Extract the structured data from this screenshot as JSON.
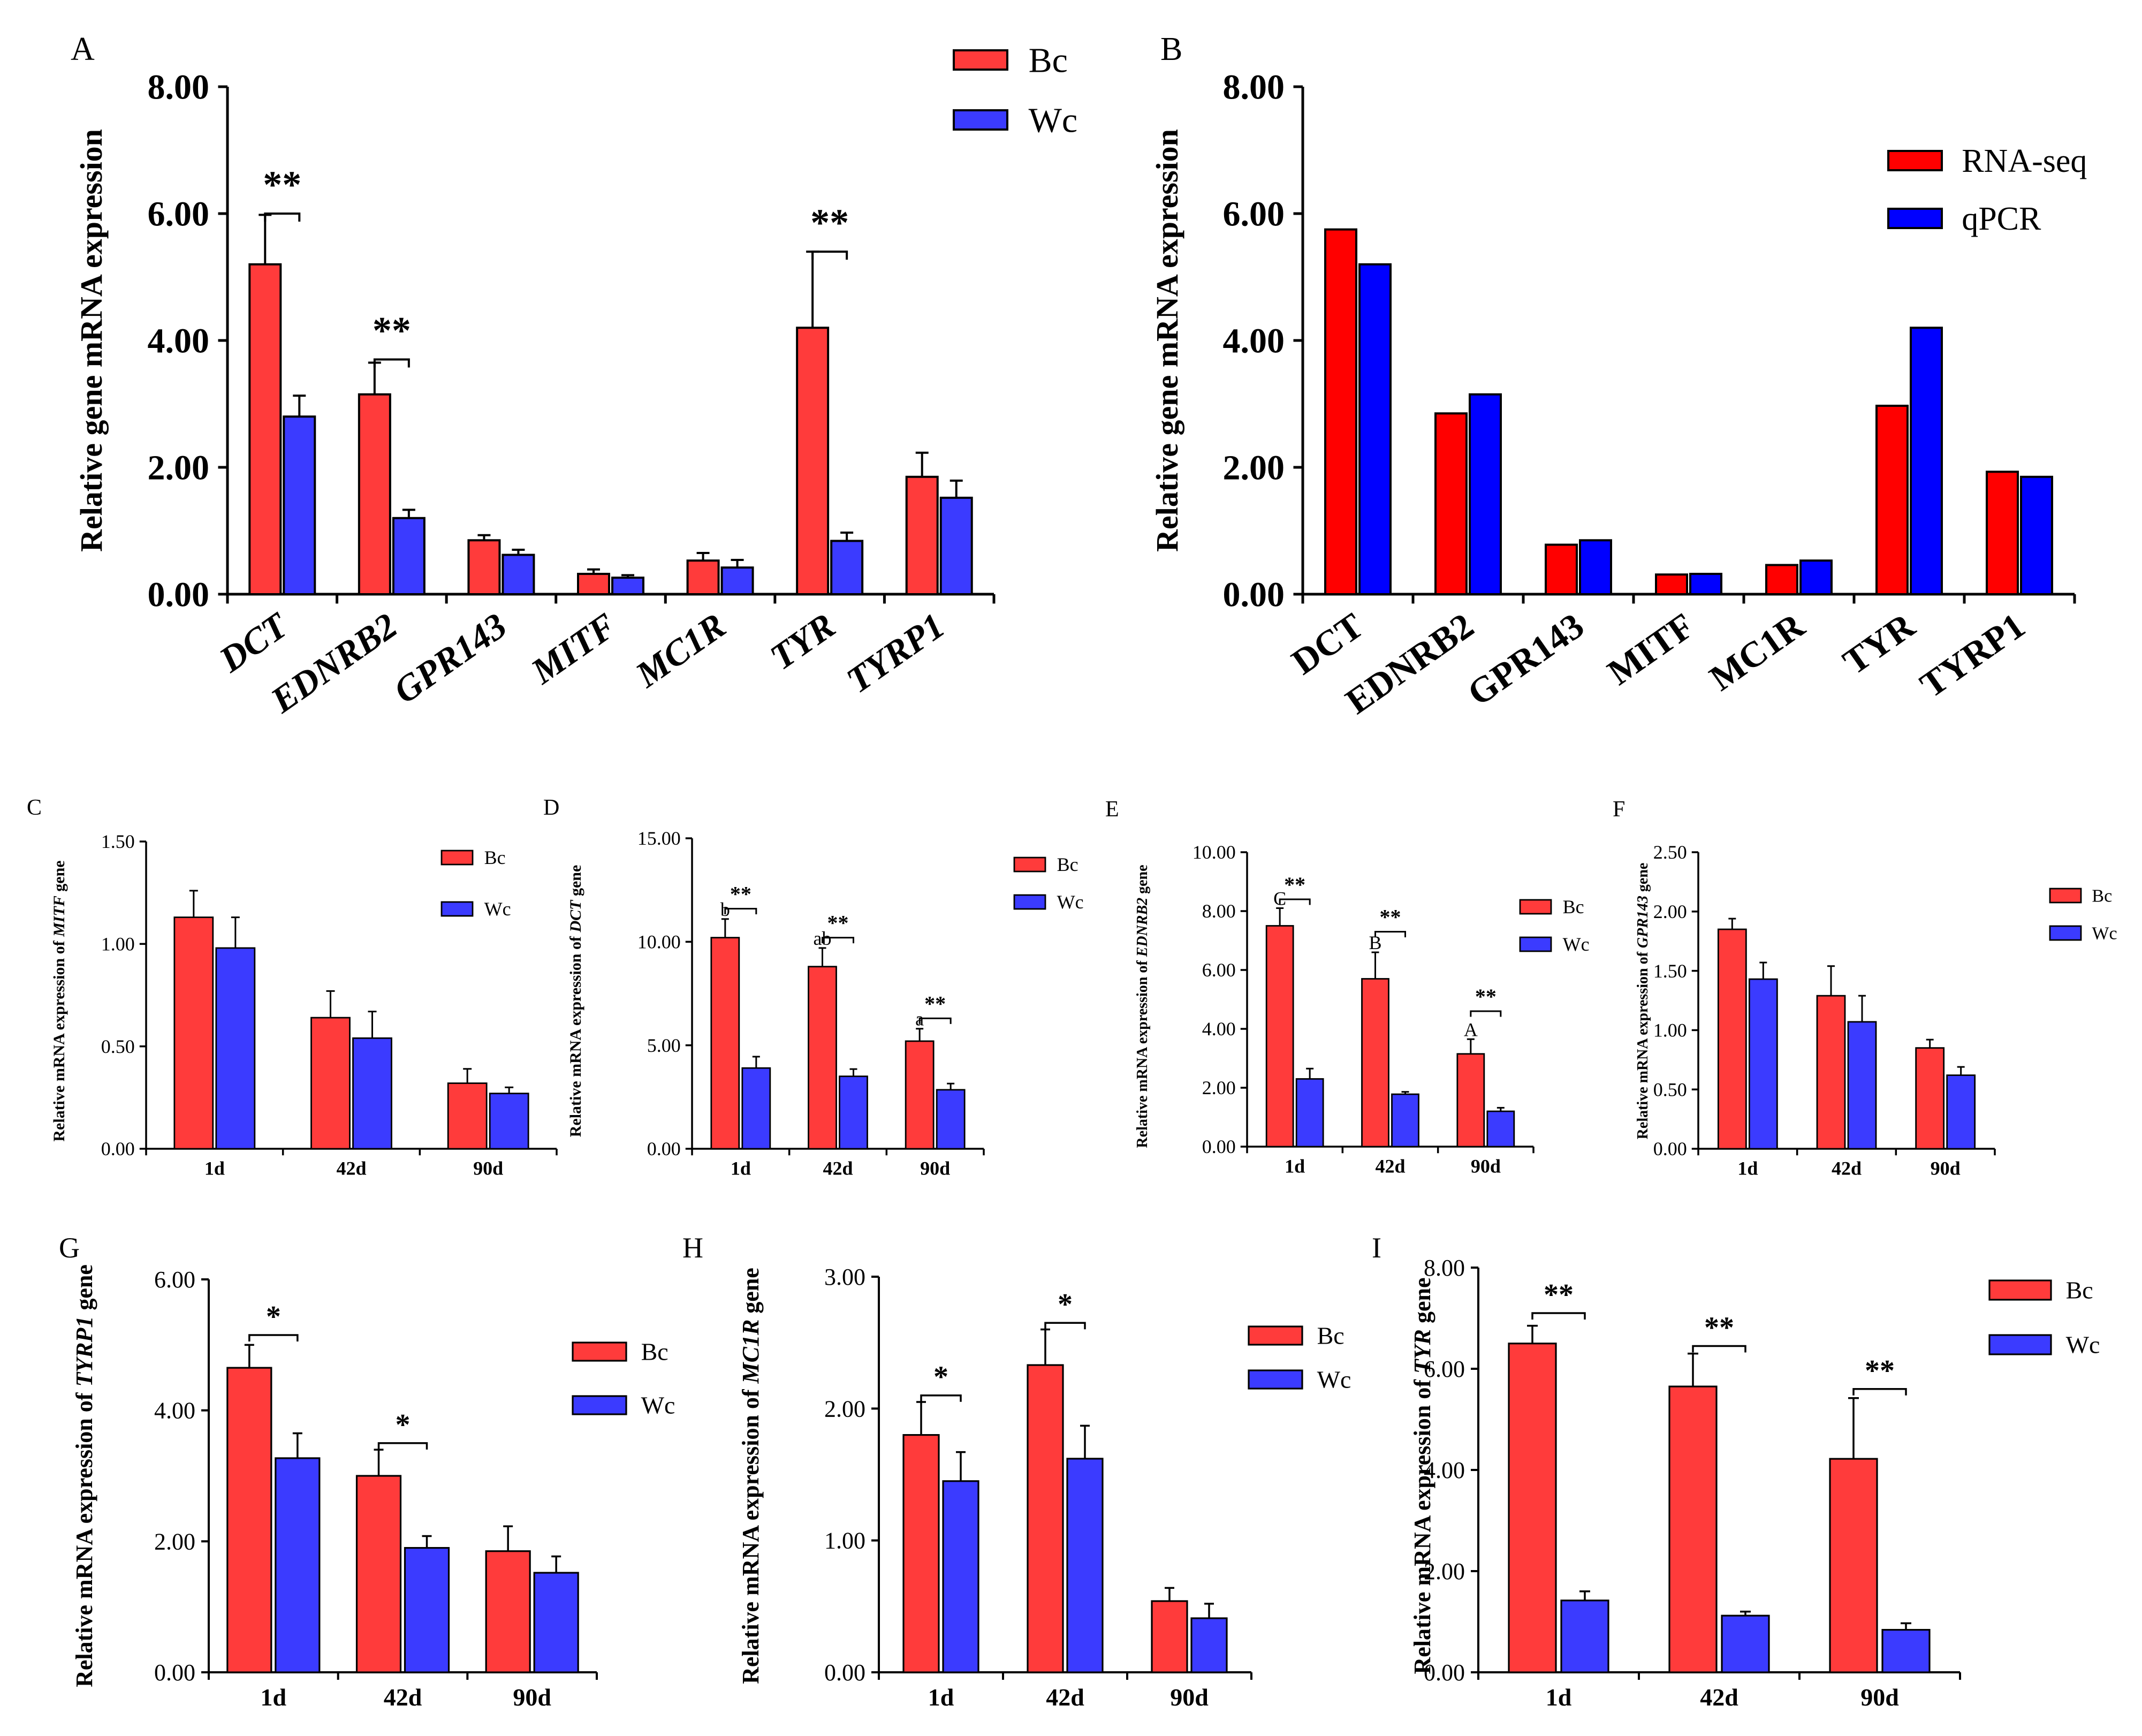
{
  "colors": {
    "bc": "#ff3b3b",
    "wc": "#3b3bff",
    "rnaseq": "#ff0000",
    "qpcr": "#0000ff"
  },
  "chart_data": [
    {
      "id": "A",
      "panel_label": "A",
      "type": "bar",
      "title": "",
      "ylabel": "Relative gene mRNA expression",
      "xlabel": "",
      "ylim": [
        0,
        8
      ],
      "yticks": [
        "0.00",
        "2.00",
        "4.00",
        "6.00",
        "8.00"
      ],
      "categories": [
        "DCT",
        "EDNRB2",
        "GPR143",
        "MITF",
        "MC1R",
        "TYR",
        "TYRP1"
      ],
      "series": [
        {
          "name": "Bc",
          "values": [
            5.2,
            3.15,
            0.85,
            0.32,
            0.53,
            4.2,
            1.85
          ],
          "errors": [
            0.78,
            0.5,
            0.08,
            0.07,
            0.12,
            1.2,
            0.38
          ]
        },
        {
          "name": "Wc",
          "values": [
            2.8,
            1.2,
            0.62,
            0.26,
            0.42,
            0.84,
            1.52
          ],
          "errors": [
            0.33,
            0.13,
            0.08,
            0.04,
            0.12,
            0.13,
            0.27
          ]
        }
      ],
      "annotations": [
        {
          "text": "**",
          "category": 0,
          "y": 6.0
        },
        {
          "text": "**",
          "category": 1,
          "y": 3.7
        },
        {
          "text": "**",
          "category": 5,
          "y": 5.4
        }
      ],
      "legend_location": "top-right"
    },
    {
      "id": "B",
      "panel_label": "B",
      "type": "bar",
      "title": "",
      "ylabel": "Relative gene mRNA expression",
      "xlabel": "",
      "ylim": [
        0,
        8
      ],
      "yticks": [
        "0.00",
        "2.00",
        "4.00",
        "6.00",
        "8.00"
      ],
      "categories": [
        "DCT",
        "EDNRB2",
        "GPR143",
        "MITF",
        "MC1R",
        "TYR",
        "TYRP1"
      ],
      "series": [
        {
          "name": "RNA-seq",
          "values": [
            5.75,
            2.85,
            0.78,
            0.31,
            0.46,
            2.97,
            1.93
          ]
        },
        {
          "name": "qPCR",
          "values": [
            5.2,
            3.15,
            0.85,
            0.32,
            0.53,
            4.2,
            1.85
          ]
        }
      ],
      "legend_location": "right"
    },
    {
      "id": "C",
      "panel_label": "C",
      "type": "bar",
      "ylabel_prefix": "Relative mRNA expression of ",
      "ylabel_gene": "MITF",
      "ylabel_suffix": " gene",
      "ylim": [
        0,
        1.5
      ],
      "yticks": [
        "0.00",
        "0.50",
        "1.00",
        "1.50"
      ],
      "categories": [
        "1d",
        "42d",
        "90d"
      ],
      "series": [
        {
          "name": "Bc",
          "values": [
            1.13,
            0.64,
            0.32
          ],
          "errors": [
            0.13,
            0.13,
            0.07
          ]
        },
        {
          "name": "Wc",
          "values": [
            0.98,
            0.54,
            0.27
          ],
          "errors": [
            0.15,
            0.13,
            0.03
          ]
        }
      ],
      "annotations": [],
      "legend_location": "top-right"
    },
    {
      "id": "D",
      "panel_label": "D",
      "type": "bar",
      "ylabel_prefix": "Relative mRNA expression of ",
      "ylabel_gene": "DCT",
      "ylabel_suffix": " gene",
      "ylim": [
        0,
        15
      ],
      "yticks": [
        "0.00",
        "5.00",
        "10.00",
        "15.00"
      ],
      "categories": [
        "1d",
        "42d",
        "90d"
      ],
      "series": [
        {
          "name": "Bc",
          "values": [
            10.2,
            8.8,
            5.2
          ],
          "errors": [
            0.9,
            0.9,
            0.6
          ]
        },
        {
          "name": "Wc",
          "values": [
            3.9,
            3.5,
            2.85
          ],
          "errors": [
            0.55,
            0.35,
            0.3
          ]
        }
      ],
      "annotations": [
        {
          "text": "**",
          "category": 0,
          "y": 11.6
        },
        {
          "text": "**",
          "category": 1,
          "y": 10.2
        },
        {
          "text": "**",
          "category": 2,
          "y": 6.3
        }
      ],
      "letters": [
        "b",
        "ab",
        "a"
      ],
      "legend_location": "top-right"
    },
    {
      "id": "E",
      "panel_label": "E",
      "type": "bar",
      "ylabel_prefix": "Relative mRNA expression of ",
      "ylabel_gene": "EDNRB2",
      "ylabel_suffix": " gene",
      "ylim": [
        0,
        10
      ],
      "yticks": [
        "0.00",
        "2.00",
        "4.00",
        "6.00",
        "8.00",
        "10.00"
      ],
      "categories": [
        "1d",
        "42d",
        "90d"
      ],
      "series": [
        {
          "name": "Bc",
          "values": [
            7.5,
            5.7,
            3.15
          ],
          "errors": [
            0.6,
            0.9,
            0.5
          ]
        },
        {
          "name": "Wc",
          "values": [
            2.3,
            1.78,
            1.2
          ],
          "errors": [
            0.35,
            0.08,
            0.12
          ]
        }
      ],
      "annotations": [
        {
          "text": "**",
          "category": 0,
          "y": 8.4
        },
        {
          "text": "**",
          "category": 1,
          "y": 7.3
        },
        {
          "text": "**",
          "category": 2,
          "y": 4.6
        }
      ],
      "letters": [
        "C",
        "B",
        "A"
      ],
      "legend_location": "top-right"
    },
    {
      "id": "F",
      "panel_label": "F",
      "type": "bar",
      "ylabel_prefix": "Relative mRNA expression of ",
      "ylabel_gene": "GPR143",
      "ylabel_suffix": " gene",
      "ylim": [
        0,
        2.5
      ],
      "yticks": [
        "0.00",
        "0.50",
        "1.00",
        "1.50",
        "2.00",
        "2.50"
      ],
      "categories": [
        "1d",
        "42d",
        "90d"
      ],
      "series": [
        {
          "name": "Bc",
          "values": [
            1.85,
            1.29,
            0.85
          ],
          "errors": [
            0.09,
            0.25,
            0.07
          ]
        },
        {
          "name": "Wc",
          "values": [
            1.43,
            1.07,
            0.62
          ],
          "errors": [
            0.14,
            0.22,
            0.07
          ]
        }
      ],
      "annotations": [],
      "legend_location": "top-right"
    },
    {
      "id": "G",
      "panel_label": "G",
      "type": "bar",
      "ylabel_prefix": "Relative mRNA expression of ",
      "ylabel_gene": "TYRP1",
      "ylabel_suffix": " gene",
      "ylim": [
        0,
        6
      ],
      "yticks": [
        "0.00",
        "2.00",
        "4.00",
        "6.00"
      ],
      "categories": [
        "1d",
        "42d",
        "90d"
      ],
      "series": [
        {
          "name": "Bc",
          "values": [
            4.65,
            3.0,
            1.85
          ],
          "errors": [
            0.35,
            0.4,
            0.38
          ]
        },
        {
          "name": "Wc",
          "values": [
            3.27,
            1.9,
            1.52
          ],
          "errors": [
            0.38,
            0.18,
            0.25
          ]
        }
      ],
      "annotations": [
        {
          "text": "*",
          "category": 0,
          "y": 5.15
        },
        {
          "text": "*",
          "category": 1,
          "y": 3.5
        }
      ],
      "legend_location": "right"
    },
    {
      "id": "H",
      "panel_label": "H",
      "type": "bar",
      "ylabel_prefix": "Relative mRNA expression of ",
      "ylabel_gene": "MC1R",
      "ylabel_suffix": " gene",
      "ylim": [
        0,
        3
      ],
      "yticks": [
        "0.00",
        "1.00",
        "2.00",
        "3.00"
      ],
      "categories": [
        "1d",
        "42d",
        "90d"
      ],
      "series": [
        {
          "name": "Bc",
          "values": [
            1.8,
            2.33,
            0.54
          ],
          "errors": [
            0.25,
            0.27,
            0.1
          ]
        },
        {
          "name": "Wc",
          "values": [
            1.45,
            1.62,
            0.41
          ],
          "errors": [
            0.22,
            0.25,
            0.11
          ]
        }
      ],
      "annotations": [
        {
          "text": "*",
          "category": 0,
          "y": 2.1
        },
        {
          "text": "*",
          "category": 1,
          "y": 2.65
        }
      ],
      "legend_location": "top-right"
    },
    {
      "id": "I",
      "panel_label": "I",
      "type": "bar",
      "ylabel_prefix": "Relative mRNA expression of ",
      "ylabel_gene": "TYR",
      "ylabel_suffix": " gene",
      "ylim": [
        0,
        8
      ],
      "yticks": [
        "0.00",
        "2.00",
        "4.00",
        "6.00",
        "8.00"
      ],
      "categories": [
        "1d",
        "42d",
        "90d"
      ],
      "series": [
        {
          "name": "Bc",
          "values": [
            6.5,
            5.65,
            4.22
          ],
          "errors": [
            0.35,
            0.65,
            1.2
          ]
        },
        {
          "name": "Wc",
          "values": [
            1.42,
            1.12,
            0.84
          ],
          "errors": [
            0.18,
            0.08,
            0.13
          ]
        }
      ],
      "annotations": [
        {
          "text": "**",
          "category": 0,
          "y": 7.1
        },
        {
          "text": "**",
          "category": 1,
          "y": 6.45
        },
        {
          "text": "**",
          "category": 2,
          "y": 5.6
        }
      ],
      "legend_location": "top-right"
    }
  ]
}
